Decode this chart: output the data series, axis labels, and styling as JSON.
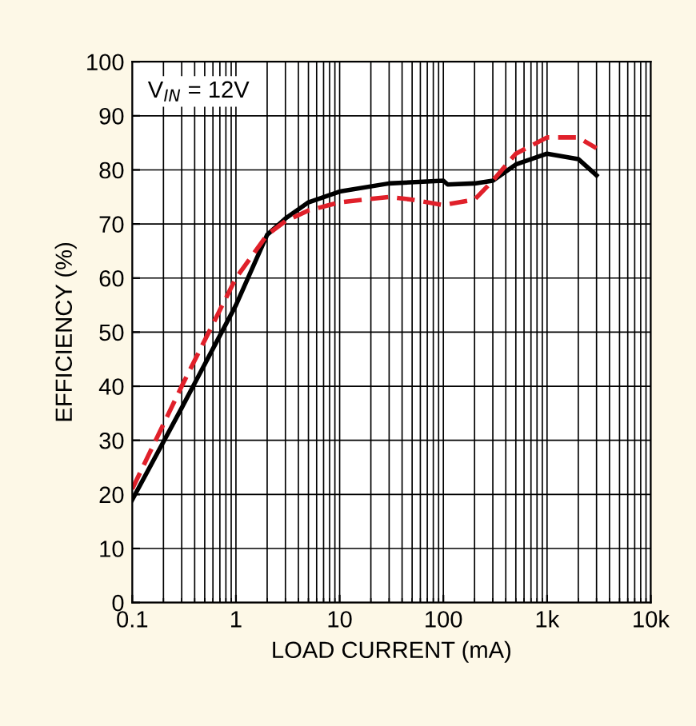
{
  "chart_data": {
    "type": "line",
    "xlabel": "LOAD CURRENT (mA)",
    "ylabel": "EFFICIENCY (%)",
    "annotations": [
      "V$_{IN}$ = 12V"
    ],
    "log": "x",
    "grid": true,
    "xlim": [
      0.1,
      10000
    ],
    "xticks": [
      0.1,
      1,
      10,
      100,
      {
        "value": 1000,
        "label": "1k"
      },
      {
        "value": 10000,
        "label": "10k"
      }
    ],
    "ylim": [
      0,
      100
    ],
    "yticks": [
      0,
      10,
      20,
      30,
      40,
      50,
      60,
      70,
      80,
      90,
      100
    ],
    "series": [
      {
        "color": "#000000",
        "line_style": "solid",
        "x": [
          0.1,
          0.3,
          1,
          2,
          3,
          5,
          10,
          30,
          100,
          110,
          200,
          300,
          500,
          1000,
          2000,
          3000
        ],
        "values": [
          19,
          36,
          55,
          68,
          71,
          74,
          76,
          77.5,
          78,
          77.3,
          77.5,
          78,
          81,
          83,
          82,
          79
        ]
      },
      {
        "color": "#e0202a",
        "line_style": "dashed",
        "x": [
          0.1,
          0.3,
          1,
          2,
          3,
          5,
          10,
          30,
          50,
          100,
          200,
          300,
          500,
          1000,
          2000,
          3000
        ],
        "values": [
          21,
          40,
          60,
          68,
          70.5,
          72.5,
          74,
          75,
          74.5,
          73.5,
          74.5,
          78,
          83,
          86,
          86,
          84
        ]
      }
    ]
  }
}
